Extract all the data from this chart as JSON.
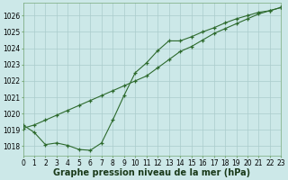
{
  "series1_x": [
    0,
    1,
    2,
    3,
    4,
    5,
    6,
    7,
    8,
    9,
    10,
    11,
    12,
    13,
    14,
    15,
    16,
    17,
    18,
    19,
    20,
    21,
    22,
    23
  ],
  "series1_y": [
    1019.3,
    1018.85,
    1018.1,
    1018.2,
    1018.05,
    1017.8,
    1017.75,
    1018.2,
    1019.6,
    1021.1,
    1022.5,
    1023.1,
    1023.85,
    1024.45,
    1024.45,
    1024.7,
    1025.0,
    1025.25,
    1025.55,
    1025.8,
    1026.0,
    1026.2,
    1026.3,
    1026.5
  ],
  "series2_x": [
    0,
    1,
    2,
    3,
    4,
    5,
    6,
    7,
    8,
    9,
    10,
    11,
    12,
    13,
    14,
    15,
    16,
    17,
    18,
    19,
    20,
    21,
    22,
    23
  ],
  "series2_y": [
    1019.1,
    1019.3,
    1019.6,
    1019.9,
    1020.2,
    1020.5,
    1020.8,
    1021.1,
    1021.4,
    1021.7,
    1022.0,
    1022.3,
    1022.8,
    1023.3,
    1023.8,
    1024.1,
    1024.5,
    1024.9,
    1025.2,
    1025.5,
    1025.8,
    1026.1,
    1026.3,
    1026.5
  ],
  "line_color": "#2d6a2d",
  "bg_color": "#cce8e8",
  "grid_color": "#aacccc",
  "xlabel": "Graphe pression niveau de la mer (hPa)",
  "ylim": [
    1017.4,
    1026.8
  ],
  "xlim": [
    0,
    23
  ],
  "yticks": [
    1018,
    1019,
    1020,
    1021,
    1022,
    1023,
    1024,
    1025,
    1026
  ],
  "xticks": [
    0,
    1,
    2,
    3,
    4,
    5,
    6,
    7,
    8,
    9,
    10,
    11,
    12,
    13,
    14,
    15,
    16,
    17,
    18,
    19,
    20,
    21,
    22,
    23
  ],
  "tick_fontsize": 5.5,
  "xlabel_fontsize": 7,
  "figsize": [
    3.2,
    2.0
  ],
  "dpi": 100
}
